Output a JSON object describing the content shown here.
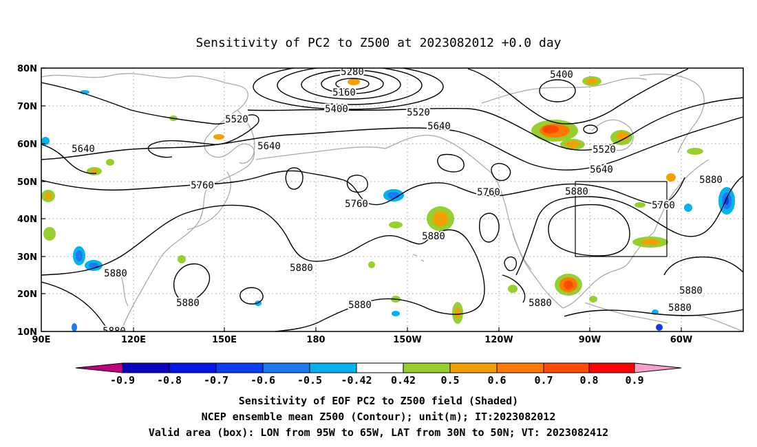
{
  "title": "Sensitivity of PC2 to Z500 at 2023082012 +0.0 day",
  "map": {
    "lat_ticks": [
      "80N",
      "70N",
      "60N",
      "50N",
      "40N",
      "30N",
      "20N",
      "10N"
    ],
    "lon_ticks": [
      "90E",
      "120E",
      "150E",
      "180",
      "150W",
      "120W",
      "90W",
      "60W"
    ],
    "lon_range": [
      "90E",
      "45W"
    ],
    "lat_range": [
      "10N",
      "80N"
    ],
    "grid": "dotted",
    "valid_box": {
      "lon_from": "95W",
      "lon_to": "65W",
      "lat_from": "30N",
      "lat_to": "50N"
    },
    "contour_labels": [
      "5280",
      "5160",
      "5400",
      "5520",
      "5640",
      "5400",
      "5520",
      "5640",
      "5520",
      "5640",
      "5640",
      "5760",
      "5760",
      "5760",
      "5880",
      "5760",
      "5880",
      "5880",
      "5880",
      "5880",
      "5880",
      "5880",
      "5880",
      "5880",
      "5880",
      "5880"
    ],
    "contour_color": "#000000",
    "coastline_color": "#aaaaaa"
  },
  "colorbar": {
    "labels": [
      "-0.9",
      "-0.8",
      "-0.7",
      "-0.6",
      "-0.5",
      "-0.42",
      "0.42",
      "0.5",
      "0.6",
      "0.7",
      "0.8",
      "0.9"
    ],
    "colors": [
      "#c0007f",
      "#0a00bd",
      "#0014e8",
      "#0a3cf0",
      "#1e78f0",
      "#00b4f0",
      "#ffffff",
      "#96cf2e",
      "#f5a000",
      "#ff7800",
      "#ff4a00",
      "#ff0000",
      "#f8a0c8"
    ]
  },
  "captions": {
    "line1": "Sensitivity of EOF PC2 to Z500 field (Shaded)",
    "line2": "NCEP ensemble mean Z500 (Contour); unit(m); IT:2023082012",
    "line3": "Valid area (box): LON from 95W to 65W, LAT from 30N to 50N; VT: 2023082412"
  }
}
